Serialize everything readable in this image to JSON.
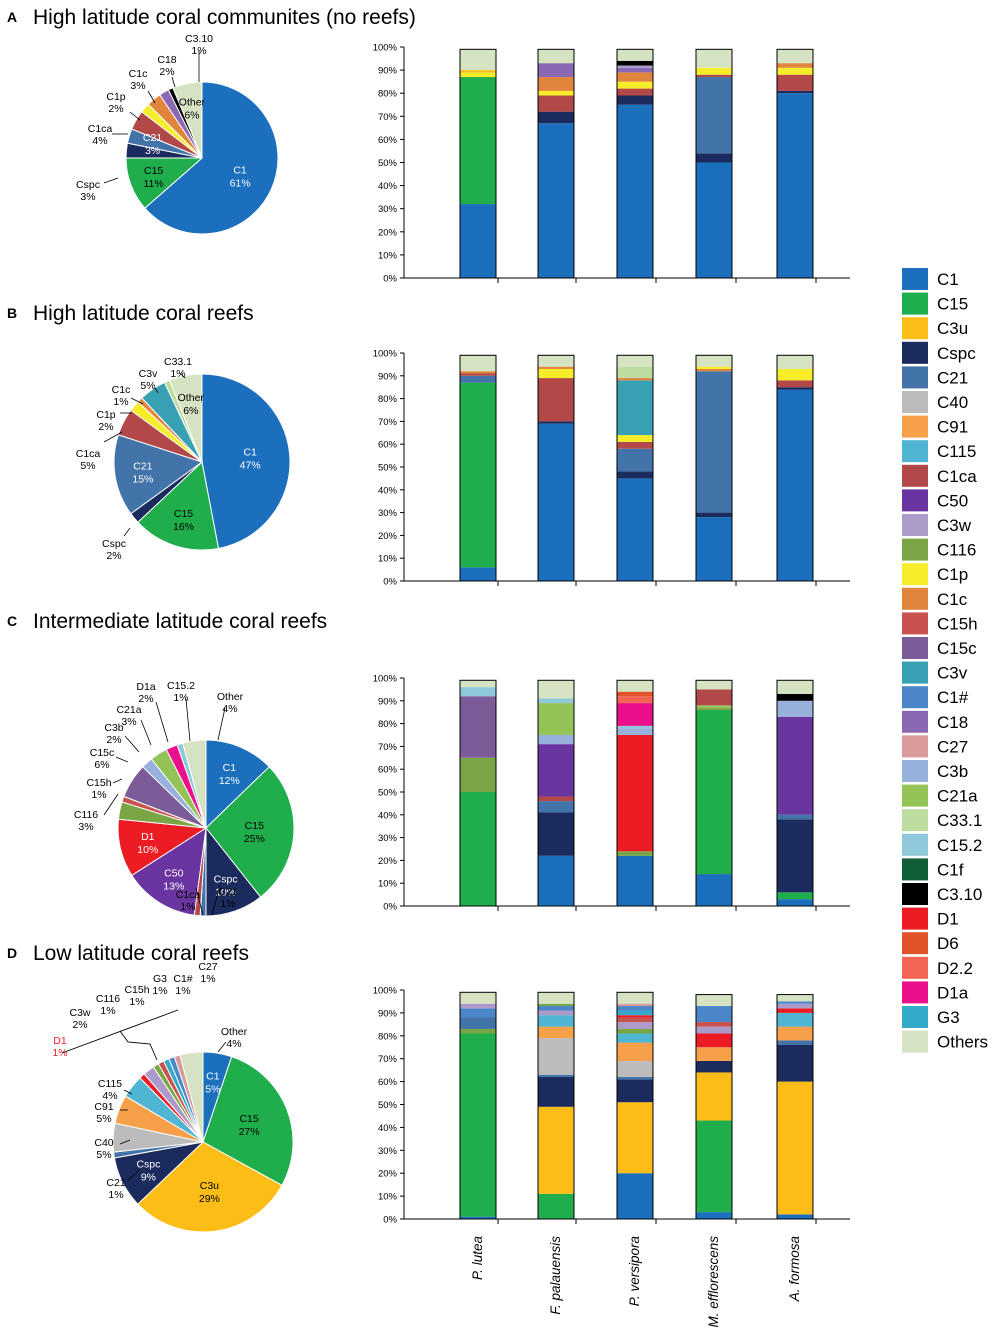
{
  "palette": {
    "C1": "#1b6fbd",
    "C15": "#1fae4b",
    "C3u": "#fbbd16",
    "Cspc": "#1c2b5e",
    "C21": "#4273a9",
    "C40": "#bcbcbc",
    "C91": "#f7a04a",
    "C115": "#4fb5d2",
    "C1ca": "#b34848",
    "C50": "#6a35a0",
    "C3w": "#ac9bc9",
    "C116": "#7aa545",
    "C1p": "#f6ec2a",
    "C1c": "#e0853b",
    "C15h": "#c9524f",
    "C15c": "#7c5c98",
    "C3v": "#37a0b3",
    "C1#": "#4b86c9",
    "C18": "#8a68b4",
    "C27": "#d89a9a",
    "C3b": "#98b1dc",
    "C21a": "#93c356",
    "C33.1": "#bedca0",
    "C15.2": "#8fc8da",
    "C1f": "#0f5e35",
    "C3.10": "#000000",
    "D1": "#ec1c24",
    "D6": "#e2522a",
    "D2.2": "#f46454",
    "D1a": "#ec0f8c",
    "G3": "#33aac9",
    "Others": "#d6e3c3"
  },
  "legend": {
    "items": [
      "C1",
      "C15",
      "C3u",
      "Cspc",
      "C21",
      "C40",
      "C91",
      "C115",
      "C1ca",
      "C50",
      "C3w",
      "C116",
      "C1p",
      "C1c",
      "C15h",
      "C15c",
      "C3v",
      "C1#",
      "C18",
      "C27",
      "C3b",
      "C21a",
      "C33.1",
      "C15.2",
      "C1f",
      "C3.10",
      "D1",
      "D6",
      "D2.2",
      "D1a",
      "G3",
      "Others"
    ]
  },
  "species": [
    "P. lutea",
    "F. palauensis",
    "P. versipora",
    "M. efflorescens",
    "A. formosa"
  ],
  "y_ticks": [
    "0%",
    "10%",
    "20%",
    "30%",
    "40%",
    "50%",
    "60%",
    "70%",
    "80%",
    "90%",
    "100%"
  ],
  "panels": [
    {
      "letter": "A",
      "title": "High latitude coral communites (no reefs)",
      "pie": [
        {
          "type": "C1",
          "label": "C1",
          "pct": "61%",
          "value": 61
        },
        {
          "type": "C15",
          "label": "C15",
          "pct": "11%",
          "value": 11
        },
        {
          "type": "Cspc",
          "label": "Cspc",
          "pct": "3%",
          "value": 3
        },
        {
          "type": "C21",
          "label": "C21",
          "pct": "3%",
          "value": 3
        },
        {
          "type": "C1ca",
          "label": "C1ca",
          "pct": "4%",
          "value": 4
        },
        {
          "type": "C1p",
          "label": "C1p",
          "pct": "2%",
          "value": 2
        },
        {
          "type": "C1c",
          "label": "C1c",
          "pct": "3%",
          "value": 3
        },
        {
          "type": "C18",
          "label": "C18",
          "pct": "2%",
          "value": 2
        },
        {
          "type": "C3.10",
          "label": "C3.10",
          "pct": "1%",
          "value": 1
        },
        {
          "type": "Others",
          "label": "Other",
          "pct": "6%",
          "value": 6
        }
      ],
      "bars": [
        [
          [
            "C1",
            32
          ],
          [
            "C15",
            55
          ],
          [
            "C1p",
            2
          ],
          [
            "C3u",
            1
          ],
          [
            "Others",
            9
          ]
        ],
        [
          [
            "C1",
            67
          ],
          [
            "Cspc",
            5
          ],
          [
            "C1ca",
            7
          ],
          [
            "C1p",
            2
          ],
          [
            "C1c",
            6
          ],
          [
            "C18",
            6
          ],
          [
            "Others",
            6
          ]
        ],
        [
          [
            "C1",
            75
          ],
          [
            "Cspc",
            4
          ],
          [
            "C1ca",
            3
          ],
          [
            "C1p",
            3
          ],
          [
            "C1c",
            4
          ],
          [
            "C18",
            2
          ],
          [
            "C3w",
            1
          ],
          [
            "C3.10",
            2
          ],
          [
            "Others",
            5
          ]
        ],
        [
          [
            "C1",
            50
          ],
          [
            "Cspc",
            4
          ],
          [
            "C21",
            33
          ],
          [
            "C1ca",
            1
          ],
          [
            "C1p",
            3
          ],
          [
            "Others",
            8
          ]
        ],
        [
          [
            "C1",
            80
          ],
          [
            "Cspc",
            1
          ],
          [
            "C1ca",
            7
          ],
          [
            "C1p",
            3
          ],
          [
            "C1c",
            2
          ],
          [
            "Others",
            6
          ]
        ]
      ]
    },
    {
      "letter": "B",
      "title": "High latitude coral reefs",
      "pie": [
        {
          "type": "C1",
          "label": "C1",
          "pct": "47%",
          "value": 47
        },
        {
          "type": "C15",
          "label": "C15",
          "pct": "16%",
          "value": 16
        },
        {
          "type": "Cspc",
          "label": "Cspc",
          "pct": "2%",
          "value": 2
        },
        {
          "type": "C21",
          "label": "C21",
          "pct": "15%",
          "value": 15
        },
        {
          "type": "C1ca",
          "label": "C1ca",
          "pct": "5%",
          "value": 5
        },
        {
          "type": "C1p",
          "label": "C1p",
          "pct": "2%",
          "value": 2
        },
        {
          "type": "C1c",
          "label": "C1c",
          "pct": "1%",
          "value": 1
        },
        {
          "type": "C3v",
          "label": "C3v",
          "pct": "5%",
          "value": 5
        },
        {
          "type": "C33.1",
          "label": "C33.1",
          "pct": "1%",
          "value": 1
        },
        {
          "type": "Others",
          "label": "Other",
          "pct": "6%",
          "value": 6
        }
      ],
      "bars": [
        [
          [
            "C1",
            6
          ],
          [
            "C15",
            81
          ],
          [
            "C21",
            3
          ],
          [
            "C1ca",
            1
          ],
          [
            "C1c",
            1
          ],
          [
            "Others",
            7
          ]
        ],
        [
          [
            "C1",
            69
          ],
          [
            "Cspc",
            1
          ],
          [
            "C1ca",
            19
          ],
          [
            "C1p",
            4
          ],
          [
            "C1c",
            1
          ],
          [
            "Others",
            5
          ]
        ],
        [
          [
            "C1",
            45
          ],
          [
            "Cspc",
            3
          ],
          [
            "C21",
            10
          ],
          [
            "C1ca",
            3
          ],
          [
            "C1p",
            3
          ],
          [
            "C3v",
            24
          ],
          [
            "C1c",
            1
          ],
          [
            "C33.1",
            5
          ],
          [
            "Others",
            5
          ]
        ],
        [
          [
            "C1",
            28
          ],
          [
            "Cspc",
            2
          ],
          [
            "C21",
            62
          ],
          [
            "C1c",
            1
          ],
          [
            "C1p",
            1
          ],
          [
            "Others",
            5
          ]
        ],
        [
          [
            "C1",
            84
          ],
          [
            "Cspc",
            1
          ],
          [
            "C1ca",
            3
          ],
          [
            "C1p",
            5
          ],
          [
            "Others",
            6
          ]
        ]
      ]
    },
    {
      "letter": "C",
      "title": "Intermediate latitude coral reefs",
      "pie": [
        {
          "type": "C1",
          "label": "C1",
          "pct": "12%",
          "value": 12
        },
        {
          "type": "C15",
          "label": "C15",
          "pct": "25%",
          "value": 25
        },
        {
          "type": "Cspc",
          "label": "Cspc",
          "pct": "10%",
          "value": 10
        },
        {
          "type": "C21",
          "label": "C21",
          "pct": "1%",
          "value": 1
        },
        {
          "type": "C1ca",
          "label": "C1ca",
          "pct": "1%",
          "value": 1
        },
        {
          "type": "C50",
          "label": "C50",
          "pct": "13%",
          "value": 13
        },
        {
          "type": "D1",
          "label": "D1",
          "pct": "10%",
          "value": 10
        },
        {
          "type": "C116",
          "label": "C116",
          "pct": "3%",
          "value": 3
        },
        {
          "type": "C15h",
          "label": "C15h",
          "pct": "1%",
          "value": 1
        },
        {
          "type": "C15c",
          "label": "C15c",
          "pct": "6%",
          "value": 6
        },
        {
          "type": "C3b",
          "label": "C3b",
          "pct": "2%",
          "value": 2
        },
        {
          "type": "C21a",
          "label": "C21a",
          "pct": "3%",
          "value": 3
        },
        {
          "type": "D1a",
          "label": "D1a",
          "pct": "2%",
          "value": 2
        },
        {
          "type": "C15.2",
          "label": "C15.2",
          "pct": "1%",
          "value": 1
        },
        {
          "type": "Others",
          "label": "Other",
          "pct": "4%",
          "value": 4
        }
      ],
      "bars": [
        [
          [
            "C15",
            50
          ],
          [
            "C116",
            15
          ],
          [
            "C15c",
            27
          ],
          [
            "C15.2",
            4
          ],
          [
            "Others",
            3
          ]
        ],
        [
          [
            "C1",
            22
          ],
          [
            "Cspc",
            19
          ],
          [
            "C21",
            5
          ],
          [
            "C1ca",
            2
          ],
          [
            "C50",
            23
          ],
          [
            "C3b",
            4
          ],
          [
            "C21a",
            14
          ],
          [
            "C15.2",
            2
          ],
          [
            "Others",
            8
          ]
        ],
        [
          [
            "C1",
            22
          ],
          [
            "C116",
            2
          ],
          [
            "D1",
            51
          ],
          [
            "C3b",
            3
          ],
          [
            "C15.2",
            1
          ],
          [
            "D1a",
            10
          ],
          [
            "D2.2",
            3
          ],
          [
            "D6",
            2
          ],
          [
            "Others",
            5
          ]
        ],
        [
          [
            "C1",
            14
          ],
          [
            "C15",
            72
          ],
          [
            "C116",
            1
          ],
          [
            "C21a",
            1
          ],
          [
            "C1ca",
            7
          ],
          [
            "Others",
            4
          ]
        ],
        [
          [
            "C1",
            3
          ],
          [
            "C15",
            3
          ],
          [
            "Cspc",
            32
          ],
          [
            "C21",
            2
          ],
          [
            "C50",
            43
          ],
          [
            "C3b",
            7
          ],
          [
            "C3.10",
            3
          ],
          [
            "Others",
            6
          ]
        ]
      ]
    },
    {
      "letter": "D",
      "title": "Low latitude coral reefs",
      "pie": [
        {
          "type": "C1",
          "label": "C1",
          "pct": "5%",
          "value": 5
        },
        {
          "type": "C15",
          "label": "C15",
          "pct": "27%",
          "value": 27
        },
        {
          "type": "C3u",
          "label": "C3u",
          "pct": "29%",
          "value": 29
        },
        {
          "type": "Cspc",
          "label": "Cspc",
          "pct": "9%",
          "value": 9
        },
        {
          "type": "C21",
          "label": "C21",
          "pct": "1%",
          "value": 1
        },
        {
          "type": "C40",
          "label": "C40",
          "pct": "5%",
          "value": 5
        },
        {
          "type": "C91",
          "label": "C91",
          "pct": "5%",
          "value": 5
        },
        {
          "type": "C115",
          "label": "C115",
          "pct": "4%",
          "value": 4
        },
        {
          "type": "D1",
          "label": "D1",
          "pct": "1%",
          "value": 1
        },
        {
          "type": "C3w",
          "label": "C3w",
          "pct": "2%",
          "value": 2
        },
        {
          "type": "C116",
          "label": "C116",
          "pct": "1%",
          "value": 1
        },
        {
          "type": "C15h",
          "label": "C15h",
          "pct": "1%",
          "value": 1
        },
        {
          "type": "G3",
          "label": "G3",
          "pct": "1%",
          "value": 1
        },
        {
          "type": "C1#",
          "label": "C1#",
          "pct": "1%",
          "value": 1
        },
        {
          "type": "C27",
          "label": "C27",
          "pct": "1%",
          "value": 1
        },
        {
          "type": "Others",
          "label": "Other",
          "pct": "4%",
          "value": 4
        }
      ],
      "bars": [
        [
          [
            "C1",
            1
          ],
          [
            "C15",
            80
          ],
          [
            "C116",
            2
          ],
          [
            "C21",
            5
          ],
          [
            "C1#",
            4
          ],
          [
            "C3w",
            2
          ],
          [
            "Others",
            5
          ]
        ],
        [
          [
            "C15",
            11
          ],
          [
            "C3u",
            38
          ],
          [
            "Cspc",
            13
          ],
          [
            "C21",
            1
          ],
          [
            "C40",
            16
          ],
          [
            "C91",
            5
          ],
          [
            "C115",
            5
          ],
          [
            "C3w",
            2
          ],
          [
            "C1#",
            2
          ],
          [
            "C116",
            1
          ],
          [
            "Others",
            5
          ]
        ],
        [
          [
            "C1",
            20
          ],
          [
            "C3u",
            31
          ],
          [
            "Cspc",
            10
          ],
          [
            "C21",
            1
          ],
          [
            "C40",
            7
          ],
          [
            "C91",
            8
          ],
          [
            "C115",
            4
          ],
          [
            "C116",
            2
          ],
          [
            "C3w",
            3
          ],
          [
            "C15h",
            2
          ],
          [
            "D1",
            1
          ],
          [
            "G3",
            2
          ],
          [
            "C1#",
            2
          ],
          [
            "C27",
            1
          ],
          [
            "Others",
            5
          ]
        ],
        [
          [
            "C1",
            3
          ],
          [
            "C15",
            40
          ],
          [
            "C3u",
            21
          ],
          [
            "Cspc",
            5
          ],
          [
            "C91",
            6
          ],
          [
            "D1",
            6
          ],
          [
            "C3w",
            3
          ],
          [
            "C15h",
            2
          ],
          [
            "C1#",
            7
          ],
          [
            "Others",
            5
          ]
        ],
        [
          [
            "C1",
            2
          ],
          [
            "C3u",
            58
          ],
          [
            "Cspc",
            16
          ],
          [
            "C21",
            2
          ],
          [
            "C91",
            6
          ],
          [
            "C115",
            6
          ],
          [
            "D1",
            2
          ],
          [
            "C3w",
            2
          ],
          [
            "C1#",
            1
          ],
          [
            "Others",
            3
          ]
        ]
      ]
    }
  ]
}
